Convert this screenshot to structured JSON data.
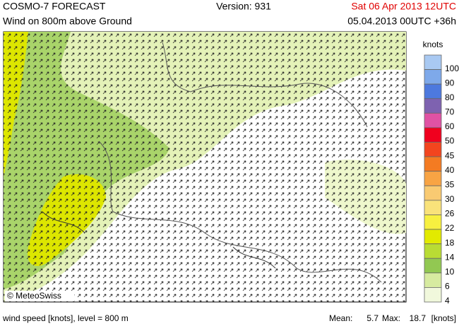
{
  "header": {
    "title": "COSMO-7 FORECAST",
    "version": "Version: 931",
    "valid_time": "Sat 06 Apr 2013 12UTC",
    "subtitle": "Wind on 800m above Ground",
    "run": "05.04.2013 00UTC +36h"
  },
  "map": {
    "credit": "© MeteoSwiss"
  },
  "legend": {
    "title": "knots",
    "items": [
      {
        "value": 100,
        "color": "#a9c9f2"
      },
      {
        "value": 90,
        "color": "#7ea9ea"
      },
      {
        "value": 80,
        "color": "#4d79de"
      },
      {
        "value": 70,
        "color": "#7e62b0"
      },
      {
        "value": 60,
        "color": "#e052a4"
      },
      {
        "value": 50,
        "color": "#f0001e"
      },
      {
        "value": 45,
        "color": "#f3451e"
      },
      {
        "value": 40,
        "color": "#f47b22"
      },
      {
        "value": 35,
        "color": "#f8a444"
      },
      {
        "value": 30,
        "color": "#f9ca72"
      },
      {
        "value": 26,
        "color": "#f9e27a"
      },
      {
        "value": 22,
        "color": "#f7f040"
      },
      {
        "value": 18,
        "color": "#e2ea00"
      },
      {
        "value": 14,
        "color": "#b9dc34"
      },
      {
        "value": 10,
        "color": "#92c852"
      },
      {
        "value": 6,
        "color": "#d7eba0"
      },
      {
        "value": 4,
        "color": "#f1f8dc"
      }
    ]
  },
  "footer": {
    "caption": "wind speed [knots], level = 800 m",
    "mean_label": "Mean:",
    "mean": 5.7,
    "max_label": "Max:",
    "max": 18.7,
    "unit": "[knots]"
  }
}
